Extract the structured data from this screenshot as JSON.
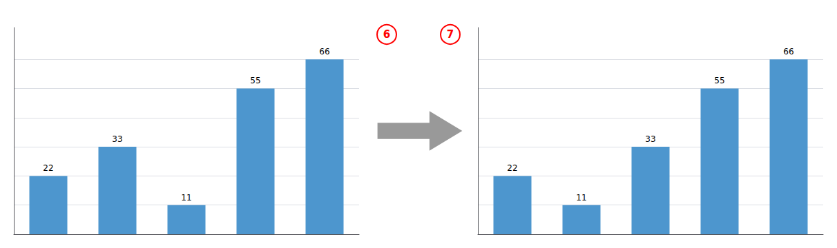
{
  "chart_data": [
    {
      "type": "bar",
      "categories": [
        null,
        null,
        null,
        null,
        null
      ],
      "values": [
        22,
        33,
        11,
        55,
        66
      ],
      "color": "#4d96ce",
      "ylim": [
        0,
        78
      ],
      "yticks": [
        0,
        11,
        22,
        33,
        44,
        55,
        66
      ],
      "grid": true,
      "data_labels": true,
      "tick_labels": false,
      "annotations": [
        {
          "text": "6",
          "color": "#ff0000"
        }
      ]
    },
    {
      "type": "bar",
      "categories": [
        null,
        null,
        null,
        null,
        null
      ],
      "values": [
        22,
        11,
        33,
        55,
        66
      ],
      "color": "#4d96ce",
      "ylim": [
        0,
        78
      ],
      "yticks": [
        0,
        11,
        22,
        33,
        44,
        55,
        66
      ],
      "grid": true,
      "data_labels": true,
      "tick_labels": false,
      "annotations": [
        {
          "text": "7",
          "color": "#ff0000"
        }
      ]
    }
  ]
}
